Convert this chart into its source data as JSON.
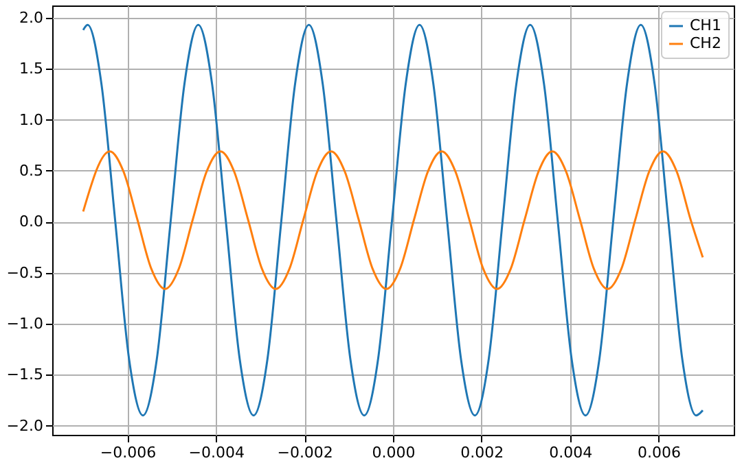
{
  "chart_data": {
    "type": "line",
    "xlim": [
      -0.0077,
      0.0077
    ],
    "ylim": [
      -2.09,
      2.12
    ],
    "xticks": [
      {
        "value": -0.006,
        "label": "−0.006"
      },
      {
        "value": -0.004,
        "label": "−0.004"
      },
      {
        "value": -0.002,
        "label": "−0.002"
      },
      {
        "value": 0,
        "label": "0.000"
      },
      {
        "value": 0.002,
        "label": "0.002"
      },
      {
        "value": 0.004,
        "label": "0.004"
      },
      {
        "value": 0.006,
        "label": "0.006"
      }
    ],
    "yticks": [
      {
        "value": -2,
        "label": "−2.0"
      },
      {
        "value": -1.5,
        "label": "−1.5"
      },
      {
        "value": -1,
        "label": "−1.0"
      },
      {
        "value": -0.5,
        "label": "−0.5"
      },
      {
        "value": 0,
        "label": "0.0"
      },
      {
        "value": 0.5,
        "label": "0.5"
      },
      {
        "value": 1,
        "label": "1.0"
      },
      {
        "value": 1.5,
        "label": "1.5"
      },
      {
        "value": 2,
        "label": "2.0"
      }
    ],
    "grid": true,
    "legend": "top right",
    "marker": "none",
    "line_style": "solid",
    "series": [
      {
        "name": "CH1",
        "color": "#1f77b4",
        "x": [
          -0.007,
          -0.0069,
          -0.0065875,
          -0.006275,
          -0.0059625,
          -0.00565,
          -0.0053375,
          -0.005025,
          -0.0047125,
          -0.0044,
          -0.0040875,
          -0.003775,
          -0.0034625,
          -0.00315,
          -0.0028375,
          -0.002525,
          -0.0022125,
          -0.0019,
          -0.0015875,
          -0.001275,
          -0.0009625,
          -0.00065,
          -0.0003375,
          -2.5e-05,
          0.0002875,
          0.0006,
          0.0009125,
          0.001225,
          0.0015375,
          0.00185,
          0.0021625,
          0.002475,
          0.0027875,
          0.0031,
          0.0034125,
          0.003725,
          0.0040375,
          0.00435,
          0.0046625,
          0.004975,
          0.0052875,
          0.0056,
          0.0059125,
          0.006225,
          0.0065375,
          0.00685,
          0.007
        ],
        "values": [
          1.88,
          1.93,
          1.35,
          0.0,
          -1.35,
          -1.9,
          -1.35,
          0.0,
          1.35,
          1.93,
          1.35,
          0.0,
          -1.35,
          -1.9,
          -1.35,
          0.0,
          1.35,
          1.93,
          1.35,
          0.0,
          -1.35,
          -1.9,
          -1.35,
          0.0,
          1.35,
          1.93,
          1.35,
          0.0,
          -1.35,
          -1.9,
          -1.35,
          0.0,
          1.35,
          1.93,
          1.35,
          0.0,
          -1.35,
          -1.9,
          -1.35,
          0.0,
          1.35,
          1.93,
          1.35,
          0.0,
          -1.35,
          -1.9,
          -1.85
        ]
      },
      {
        "name": "CH2",
        "color": "#ff7f0e",
        "x": [
          -0.007,
          -0.0064,
          -0.0060875,
          -0.005775,
          -0.0054625,
          -0.00515,
          -0.0048375,
          -0.004525,
          -0.0042125,
          -0.0039,
          -0.0035875,
          -0.003275,
          -0.0029625,
          -0.00265,
          -0.0023375,
          -0.002025,
          -0.0017125,
          -0.0014,
          -0.0010875,
          -0.000775,
          -0.0004625,
          -0.00015,
          0.0001625,
          0.000475,
          0.0007875,
          0.0011,
          0.0014125,
          0.001725,
          0.0020375,
          0.00235,
          0.0026625,
          0.002975,
          0.0032875,
          0.0036,
          0.0039125,
          0.004225,
          0.0045375,
          0.00485,
          0.0051625,
          0.005475,
          0.0057875,
          0.0061,
          0.0064125,
          0.006725,
          0.007
        ],
        "values": [
          0.1,
          0.69,
          0.49,
          0.02,
          -0.46,
          -0.66,
          -0.46,
          0.02,
          0.49,
          0.69,
          0.49,
          0.02,
          -0.46,
          -0.66,
          -0.46,
          0.02,
          0.49,
          0.69,
          0.49,
          0.02,
          -0.46,
          -0.66,
          -0.46,
          0.02,
          0.49,
          0.69,
          0.49,
          0.02,
          -0.46,
          -0.66,
          -0.46,
          0.02,
          0.49,
          0.69,
          0.49,
          0.02,
          -0.46,
          -0.66,
          -0.46,
          0.02,
          0.49,
          0.69,
          0.49,
          0.02,
          -0.35
        ]
      }
    ]
  }
}
